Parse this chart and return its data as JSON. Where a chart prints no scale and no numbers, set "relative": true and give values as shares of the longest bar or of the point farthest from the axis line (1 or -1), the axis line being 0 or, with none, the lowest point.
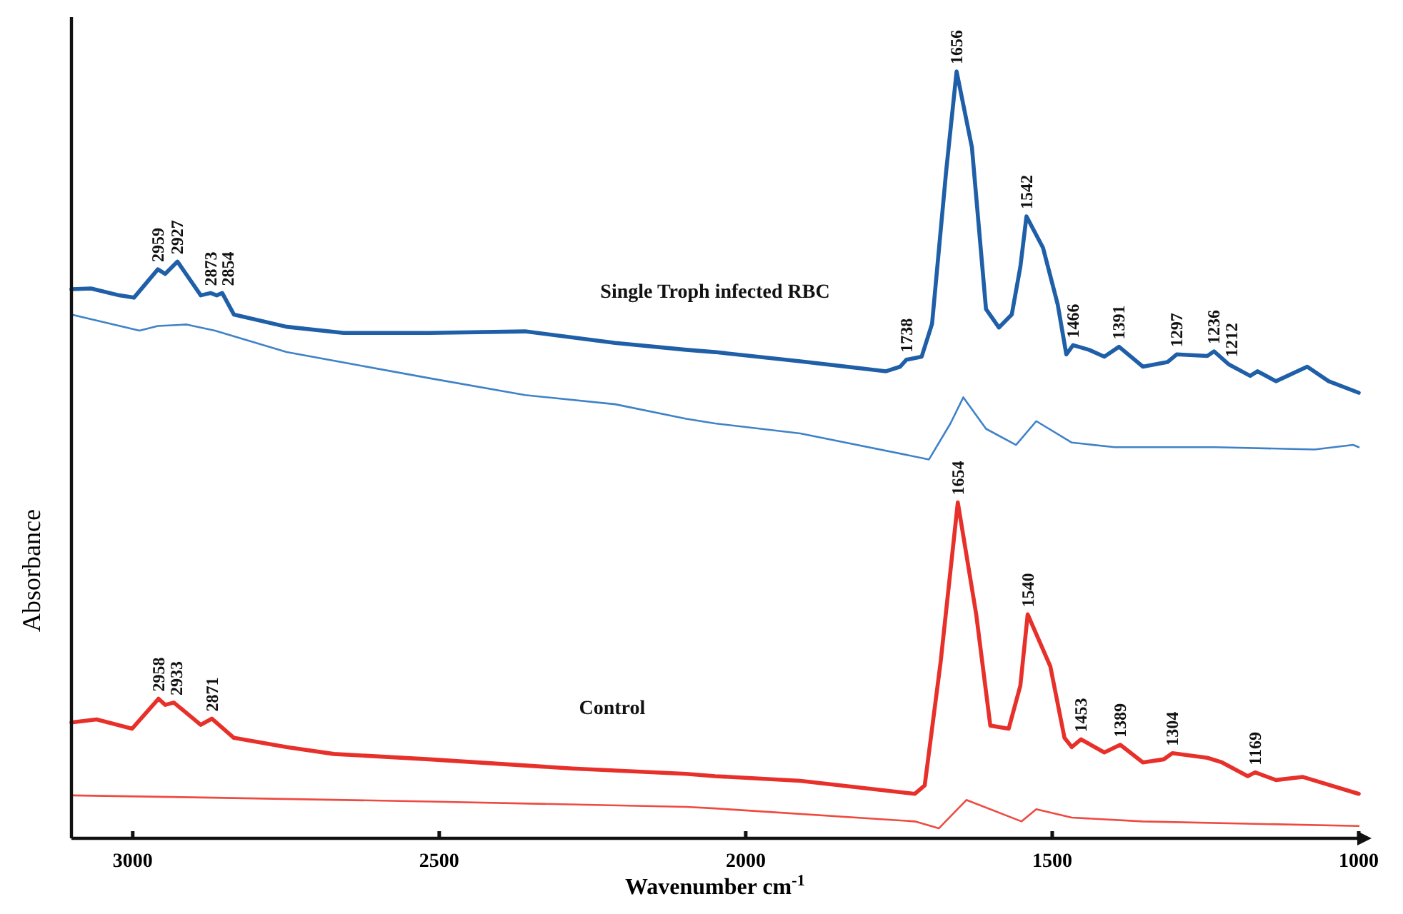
{
  "chart_data": {
    "type": "line",
    "relative": true,
    "xlabel": "Wavenumber cm$^{-1}$",
    "ylabel": "Absorbance",
    "xlim": [
      3100,
      1000
    ],
    "xticks": [
      3000,
      2500,
      2000,
      1500,
      1000
    ],
    "series": [
      {
        "name": "Single Troph infected RBC",
        "color": "#1f5fa8",
        "x": [
          3100,
          3068,
          3022,
          2998,
          2959,
          2947,
          2927,
          2889,
          2873,
          2863,
          2854,
          2835,
          2749,
          2656,
          2516,
          2360,
          2213,
          2097,
          2050,
          1911,
          1771,
          1748,
          1738,
          1713,
          1696,
          1673,
          1656,
          1631,
          1608,
          1587,
          1566,
          1552,
          1542,
          1515,
          1491,
          1477,
          1466,
          1440,
          1415,
          1391,
          1352,
          1312,
          1297,
          1247,
          1236,
          1212,
          1177,
          1165,
          1135,
          1084,
          1049,
          1000
        ],
        "values": [
          0.716,
          0.717,
          0.708,
          0.705,
          0.742,
          0.736,
          0.752,
          0.708,
          0.711,
          0.708,
          0.711,
          0.683,
          0.667,
          0.659,
          0.659,
          0.661,
          0.646,
          0.637,
          0.634,
          0.622,
          0.609,
          0.615,
          0.624,
          0.628,
          0.671,
          0.87,
          1,
          0.901,
          0.69,
          0.666,
          0.683,
          0.745,
          0.811,
          0.77,
          0.696,
          0.631,
          0.643,
          0.637,
          0.628,
          0.641,
          0.615,
          0.621,
          0.631,
          0.629,
          0.635,
          0.618,
          0.603,
          0.609,
          0.596,
          0.615,
          0.596,
          0.581
        ]
      },
      {
        "color": "#3f82c8",
        "x": [
          3100,
          2989,
          2959,
          2912,
          2866,
          2749,
          2516,
          2360,
          2213,
          2097,
          2050,
          1911,
          1701,
          1666,
          1645,
          1608,
          1559,
          1526,
          1468,
          1398,
          1235,
          1072,
          1009,
          1000
        ],
        "values": [
          0.683,
          0.662,
          0.668,
          0.67,
          0.662,
          0.634,
          0.6,
          0.578,
          0.566,
          0.547,
          0.541,
          0.528,
          0.494,
          0.541,
          0.575,
          0.534,
          0.513,
          0.544,
          0.516,
          0.51,
          0.51,
          0.507,
          0.513,
          0.51
        ]
      },
      {
        "name": "Control",
        "color": "#e8302a",
        "x": [
          3100,
          3059,
          3001,
          2958,
          2947,
          2933,
          2889,
          2871,
          2835,
          2749,
          2672,
          2516,
          2283,
          2097,
          2050,
          1911,
          1724,
          1708,
          1682,
          1654,
          1624,
          1601,
          1571,
          1552,
          1540,
          1503,
          1480,
          1468,
          1453,
          1415,
          1389,
          1352,
          1318,
          1304,
          1247,
          1223,
          1181,
          1169,
          1135,
          1091,
          1000
        ],
        "values": [
          0.151,
          0.155,
          0.143,
          0.182,
          0.174,
          0.177,
          0.148,
          0.156,
          0.131,
          0.119,
          0.11,
          0.103,
          0.091,
          0.084,
          0.081,
          0.075,
          0.058,
          0.069,
          0.23,
          0.438,
          0.292,
          0.147,
          0.143,
          0.199,
          0.292,
          0.224,
          0.131,
          0.119,
          0.129,
          0.112,
          0.122,
          0.099,
          0.103,
          0.111,
          0.105,
          0.099,
          0.081,
          0.086,
          0.076,
          0.08,
          0.058
        ]
      },
      {
        "color": "#ee4a40",
        "x": [
          3100,
          2868,
          2516,
          2097,
          2050,
          1724,
          1685,
          1640,
          1550,
          1526,
          1468,
          1352,
          1000
        ],
        "values": [
          0.056,
          0.053,
          0.048,
          0.041,
          0.039,
          0.022,
          0.013,
          0.05,
          0.022,
          0.038,
          0.027,
          0.022,
          0.016
        ]
      }
    ],
    "annotations": [
      {
        "text": "2959",
        "x": 2959,
        "y": 0.742
      },
      {
        "text": "2927",
        "x": 2927,
        "y": 0.752
      },
      {
        "text": "2873",
        "x": 2873,
        "y": 0.711
      },
      {
        "text": "2854",
        "x": 2854,
        "y": 0.711
      },
      {
        "text": "1738",
        "x": 1738,
        "y": 0.624
      },
      {
        "text": "1656",
        "x": 1656,
        "y": 1
      },
      {
        "text": "1542",
        "x": 1542,
        "y": 0.811
      },
      {
        "text": "1466",
        "x": 1466,
        "y": 0.643
      },
      {
        "text": "1391",
        "x": 1391,
        "y": 0.641
      },
      {
        "text": "1297",
        "x": 1297,
        "y": 0.631
      },
      {
        "text": "1236",
        "x": 1236,
        "y": 0.635
      },
      {
        "text": "1212",
        "x": 1212,
        "y": 0.618
      },
      {
        "text": "2958",
        "x": 2958,
        "y": 0.182
      },
      {
        "text": "2933",
        "x": 2933,
        "y": 0.177
      },
      {
        "text": "2871",
        "x": 2871,
        "y": 0.156
      },
      {
        "text": "1654",
        "x": 1654,
        "y": 0.438
      },
      {
        "text": "1540",
        "x": 1540,
        "y": 0.292
      },
      {
        "text": "1453",
        "x": 1453,
        "y": 0.129
      },
      {
        "text": "1389",
        "x": 1389,
        "y": 0.122
      },
      {
        "text": "1304",
        "x": 1304,
        "y": 0.111
      },
      {
        "text": "1169",
        "x": 1169,
        "y": 0.086
      }
    ]
  }
}
